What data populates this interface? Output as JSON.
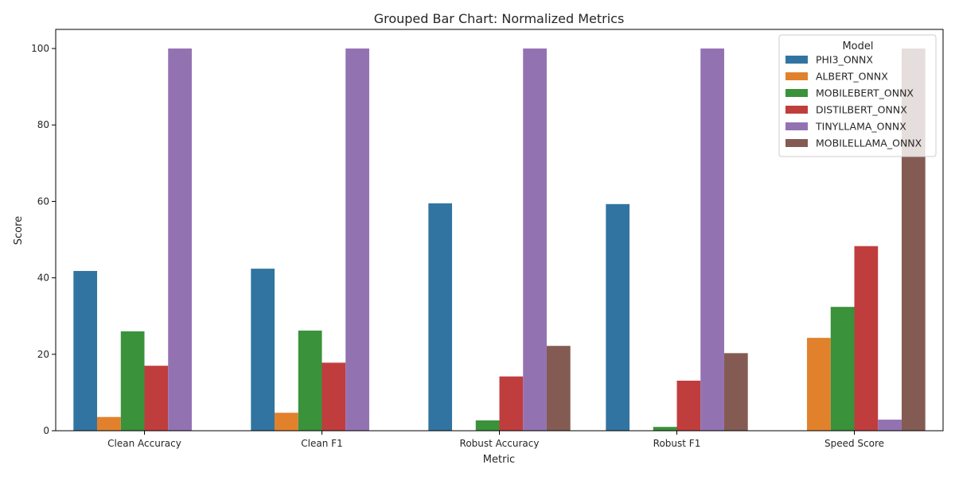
{
  "chart_data": {
    "type": "bar",
    "title": "Grouped Bar Chart: Normalized Metrics",
    "xlabel": "Metric",
    "ylabel": "Score",
    "ylim": [
      0,
      105
    ],
    "yticks": [
      0,
      20,
      40,
      60,
      80,
      100
    ],
    "grid": false,
    "legend": {
      "title": "Model",
      "placement": "top-right"
    },
    "categories": [
      "Clean Accuracy",
      "Clean F1",
      "Robust Accuracy",
      "Robust F1",
      "Speed Score"
    ],
    "series": [
      {
        "name": "PHI3_ONNX",
        "color": "#3274a1",
        "values": [
          41.8,
          42.4,
          59.5,
          59.3,
          0
        ]
      },
      {
        "name": "ALBERT_ONNX",
        "color": "#e1812c",
        "values": [
          3.6,
          4.7,
          0,
          0,
          24.3
        ]
      },
      {
        "name": "MOBILEBERT_ONNX",
        "color": "#3a923a",
        "values": [
          26.0,
          26.2,
          2.7,
          1.0,
          32.4
        ]
      },
      {
        "name": "DISTILBERT_ONNX",
        "color": "#c03d3e",
        "values": [
          17.0,
          17.8,
          14.2,
          13.1,
          48.3
        ]
      },
      {
        "name": "TINYLLAMA_ONNX",
        "color": "#9372b2",
        "values": [
          100,
          100,
          100,
          100,
          2.9
        ]
      },
      {
        "name": "MOBILELLAMA_ONNX",
        "color": "#845b53",
        "values": [
          0,
          0,
          22.2,
          20.3,
          100
        ]
      }
    ]
  }
}
